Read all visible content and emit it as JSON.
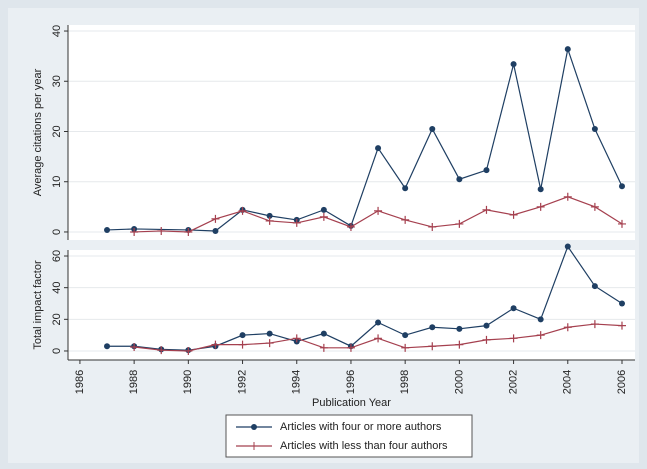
{
  "chart_data": [
    {
      "type": "line",
      "ylabel": "Average citations per year",
      "xlim": [
        1985.56,
        2006.48
      ],
      "ylim": [
        -1.6,
        41.2
      ],
      "yticks": [
        0,
        10,
        20,
        30,
        40
      ],
      "grid": true,
      "series": [
        {
          "name": "Articles with four or more authors",
          "color": "#1f3f63",
          "marker": "circle",
          "x": [
            1987,
            1988,
            1990,
            1991,
            1992,
            1993,
            1994,
            1995,
            1996,
            1997,
            1998,
            1999,
            2000,
            2001,
            2002,
            2003,
            2004,
            2005,
            2006
          ],
          "values": [
            0.4,
            0.6,
            0.4,
            0.2,
            4.4,
            3.2,
            2.4,
            4.4,
            1.2,
            16.7,
            8.7,
            20.5,
            10.5,
            12.3,
            33.4,
            8.5,
            36.4,
            20.5,
            9.1
          ]
        },
        {
          "name": "Articles with less than four authors",
          "color": "#a5404f",
          "marker": "plus",
          "x": [
            1988,
            1989,
            1990,
            1991,
            1992,
            1993,
            1994,
            1995,
            1996,
            1997,
            1998,
            1999,
            2000,
            2001,
            2002,
            2003,
            2004,
            2005,
            2006
          ],
          "values": [
            0,
            0.2,
            0,
            2.6,
            4.2,
            2.2,
            1.8,
            3,
            1,
            4.2,
            2.4,
            1,
            1.6,
            4.4,
            3.4,
            5,
            7,
            5,
            1.6
          ]
        }
      ]
    },
    {
      "type": "line",
      "ylabel": "Total impact factor",
      "xlabel": "Publication Year",
      "xlim": [
        1985.56,
        2006.48
      ],
      "ylim": [
        -5.7,
        63.8
      ],
      "yticks": [
        0,
        20,
        40,
        60
      ],
      "xticks": [
        1986,
        1988,
        1990,
        1992,
        1994,
        1996,
        1998,
        2000,
        2002,
        2004,
        2006
      ],
      "grid": true,
      "series": [
        {
          "color": "#1f3f63",
          "marker": "circle",
          "x": [
            1987,
            1988,
            1989,
            1990,
            1991,
            1992,
            1993,
            1994,
            1995,
            1996,
            1997,
            1998,
            1999,
            2000,
            2001,
            2002,
            2003,
            2004,
            2005,
            2006
          ],
          "values": [
            3,
            3,
            1,
            0.5,
            3,
            10,
            11,
            6,
            11,
            3,
            18,
            10,
            15,
            14,
            16,
            27,
            20,
            66,
            41,
            30
          ]
        },
        {
          "color": "#a5404f",
          "marker": "plus",
          "x": [
            1988,
            1989,
            1990,
            1991,
            1992,
            1993,
            1994,
            1995,
            1996,
            1997,
            1998,
            1999,
            2000,
            2001,
            2002,
            2003,
            2004,
            2005,
            2006
          ],
          "values": [
            2.5,
            0.5,
            0,
            4,
            4,
            5,
            8,
            2,
            2,
            8,
            2,
            3,
            4,
            7,
            8,
            10,
            15,
            17,
            16
          ]
        }
      ]
    }
  ]
}
